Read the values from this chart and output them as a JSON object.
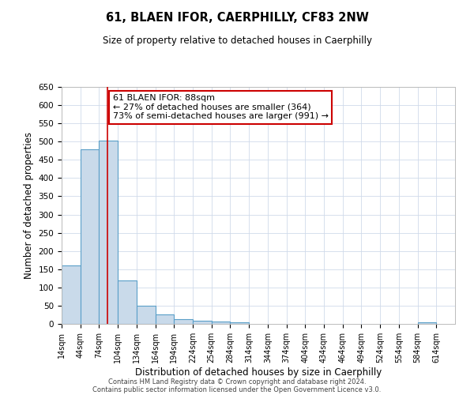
{
  "title": "61, BLAEN IFOR, CAERPHILLY, CF83 2NW",
  "subtitle": "Size of property relative to detached houses in Caerphilly",
  "xlabel": "Distribution of detached houses by size in Caerphilly",
  "ylabel": "Number of detached properties",
  "bin_edges": [
    14,
    44,
    74,
    104,
    134,
    164,
    194,
    224,
    254,
    284,
    314,
    344,
    374,
    404,
    434,
    464,
    494,
    524,
    554,
    584,
    614
  ],
  "bar_values": [
    160,
    478,
    503,
    120,
    50,
    25,
    12,
    8,
    7,
    5,
    0,
    0,
    0,
    0,
    0,
    0,
    0,
    0,
    0,
    5
  ],
  "bar_color": "#c9daea",
  "bar_edge_color": "#5a9fc8",
  "ylim": [
    0,
    650
  ],
  "yticks": [
    0,
    50,
    100,
    150,
    200,
    250,
    300,
    350,
    400,
    450,
    500,
    550,
    600,
    650
  ],
  "vline_x": 88,
  "vline_color": "#cc0000",
  "annotation_text": "61 BLAEN IFOR: 88sqm\n← 27% of detached houses are smaller (364)\n73% of semi-detached houses are larger (991) →",
  "footer_line1": "Contains HM Land Registry data © Crown copyright and database right 2024.",
  "footer_line2": "Contains public sector information licensed under the Open Government Licence v3.0.",
  "background_color": "#ffffff",
  "grid_color": "#d0daea"
}
